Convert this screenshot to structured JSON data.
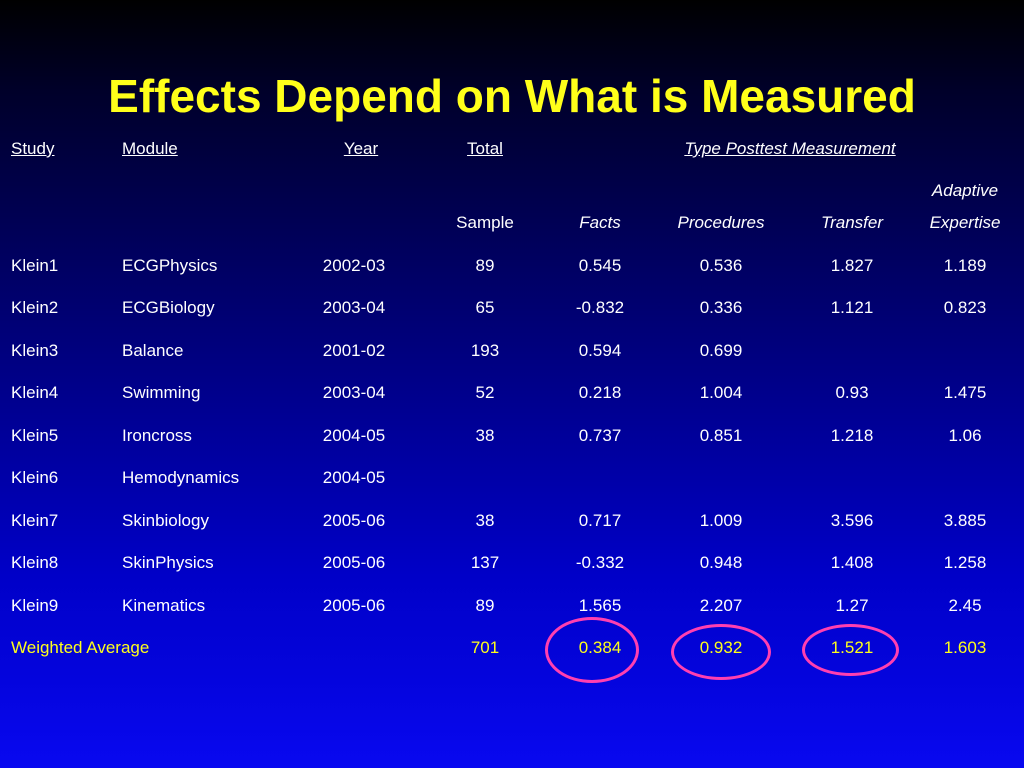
{
  "title": "Effects Depend on What is Measured",
  "headers": {
    "study": "Study",
    "module": "Module",
    "year": "Year",
    "total": "Total",
    "type_posttest": "Type Posttest Measurement",
    "sample": "Sample",
    "facts": "Facts",
    "procedures": "Procedures",
    "transfer": "Transfer",
    "adaptive": "Adaptive",
    "expertise": "Expertise"
  },
  "rows": [
    {
      "study": "Klein1",
      "module": "ECGPhysics",
      "year": "2002-03",
      "sample": "89",
      "facts": "0.545",
      "procedures": "0.536",
      "transfer": "1.827",
      "adaptive": "1.189"
    },
    {
      "study": "Klein2",
      "module": "ECGBiology",
      "year": "2003-04",
      "sample": "65",
      "facts": "-0.832",
      "procedures": "0.336",
      "transfer": "1.121",
      "adaptive": "0.823"
    },
    {
      "study": "Klein3",
      "module": "Balance",
      "year": "2001-02",
      "sample": "193",
      "facts": "0.594",
      "procedures": "0.699",
      "transfer": "",
      "adaptive": ""
    },
    {
      "study": "Klein4",
      "module": "Swimming",
      "year": "2003-04",
      "sample": "52",
      "facts": "0.218",
      "procedures": "1.004",
      "transfer": "0.93",
      "adaptive": "1.475"
    },
    {
      "study": "Klein5",
      "module": "Ironcross",
      "year": "2004-05",
      "sample": "38",
      "facts": "0.737",
      "procedures": "0.851",
      "transfer": "1.218",
      "adaptive": "1.06"
    },
    {
      "study": "Klein6",
      "module": "Hemodynamics",
      "year": "2004-05",
      "sample": "",
      "facts": "",
      "procedures": "",
      "transfer": "",
      "adaptive": ""
    },
    {
      "study": "Klein7",
      "module": "Skinbiology",
      "year": "2005-06",
      "sample": "38",
      "facts": "0.717",
      "procedures": "1.009",
      "transfer": "3.596",
      "adaptive": "3.885"
    },
    {
      "study": "Klein8",
      "module": "SkinPhysics",
      "year": "2005-06",
      "sample": "137",
      "facts": "-0.332",
      "procedures": "0.948",
      "transfer": "1.408",
      "adaptive": "1.258"
    },
    {
      "study": "Klein9",
      "module": "Kinematics",
      "year": "2005-06",
      "sample": "89",
      "facts": "1.565",
      "procedures": "2.207",
      "transfer": "1.27",
      "adaptive": "2.45"
    }
  ],
  "weighted": {
    "label": "Weighted Average",
    "sample": "701",
    "facts": "0.384",
    "procedures": "0.932",
    "transfer": "1.521",
    "adaptive": "1.603"
  },
  "colors": {
    "title": "#ffff1a",
    "weighted_row": "#ffff1a",
    "highlight_circle": "#ff3fb0",
    "text": "#ffffff"
  }
}
